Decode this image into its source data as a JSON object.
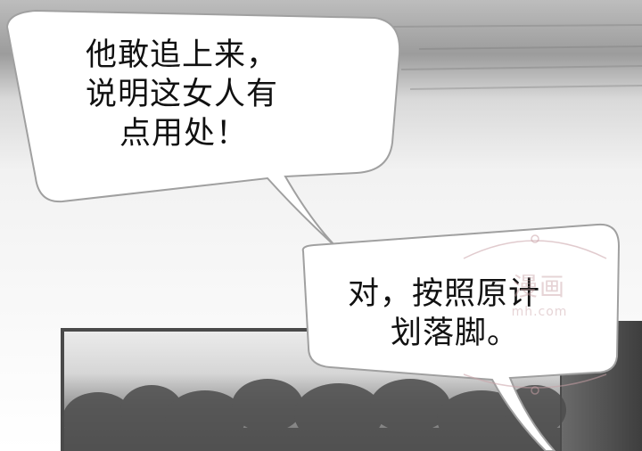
{
  "bubbles": [
    {
      "lines": [
        "他敢追上来，",
        "说明这女人有",
        "点用处！"
      ]
    },
    {
      "lines": [
        "对，按照原计",
        "划落脚。"
      ]
    }
  ],
  "watermark": {
    "main": "漫画",
    "url": "mh.com"
  },
  "colors": {
    "ink": "#111111",
    "bubble_fill": "#ffffff",
    "bubble_stroke": "#9a9a9a",
    "sky_gray": "#c8c8c8",
    "forest_dark": "#5a5a5a"
  }
}
